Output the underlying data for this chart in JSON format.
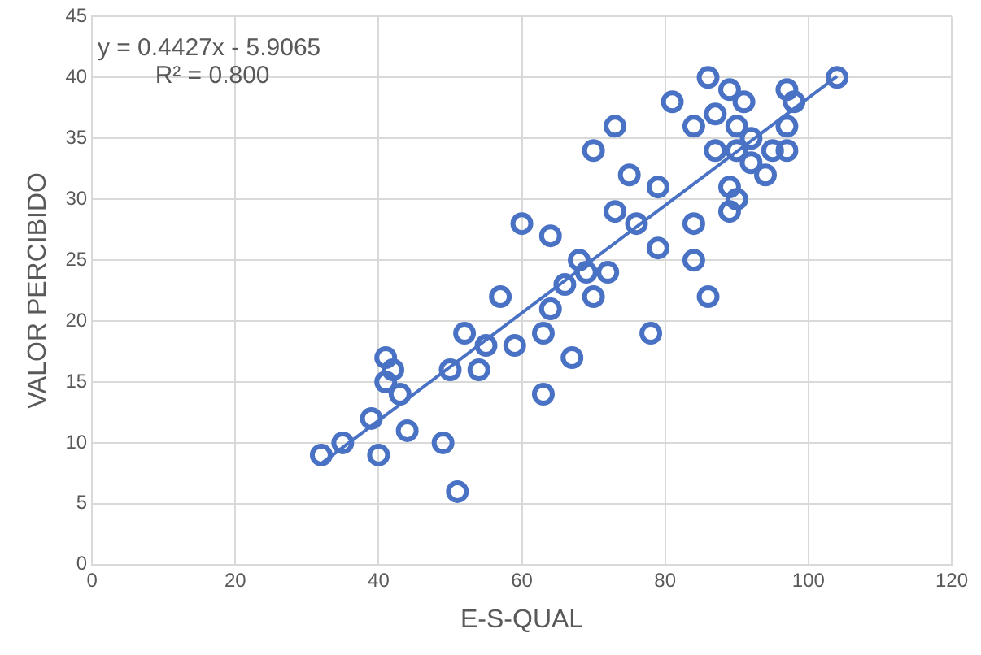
{
  "chart_data": {
    "type": "scatter",
    "xlabel": "E-S-QUAL",
    "ylabel": "VALOR PERCIBIDO",
    "xlim": [
      0,
      120
    ],
    "xticks": [
      0,
      20,
      40,
      60,
      80,
      100,
      120
    ],
    "ylim": [
      0,
      45
    ],
    "yticks": [
      0,
      5,
      10,
      15,
      20,
      25,
      30,
      35,
      40,
      45
    ],
    "grid": true,
    "legend": false,
    "marker": "circle",
    "annotations": [
      "y = 0.4427x - 5.9065",
      "R² = 0.800"
    ],
    "series": [
      {
        "type": "scatter",
        "color": "#4a72c4",
        "x": [
          32,
          35,
          39,
          40,
          41,
          42,
          41,
          43,
          44,
          49,
          51,
          50,
          52,
          55,
          54,
          57,
          59,
          63,
          63,
          60,
          64,
          70,
          73,
          75,
          79,
          73,
          76,
          84,
          79,
          84,
          68,
          69,
          72,
          81,
          86,
          89,
          91,
          84,
          87,
          90,
          87,
          90,
          92,
          95,
          97,
          98,
          97,
          97,
          92,
          94,
          89,
          90,
          89,
          104,
          67,
          64,
          70,
          78,
          86,
          66
        ],
        "values": [
          9,
          10,
          12,
          9,
          17,
          16,
          15,
          14,
          11,
          10,
          6,
          16,
          19,
          18,
          16,
          22,
          18,
          14,
          19,
          28,
          27,
          34,
          36,
          32,
          31,
          29,
          28,
          28,
          26,
          25,
          25,
          24,
          24,
          38,
          40,
          39,
          38,
          36,
          37,
          36,
          34,
          34,
          35,
          34,
          39,
          38,
          36,
          34,
          33,
          32,
          31,
          30,
          29,
          40,
          17,
          21,
          22,
          19,
          22,
          23
        ]
      },
      {
        "type": "line",
        "color": "#4a72c4",
        "marker": "none",
        "x": [
          32,
          104
        ],
        "values": [
          8.3,
          40.1
        ]
      }
    ]
  }
}
